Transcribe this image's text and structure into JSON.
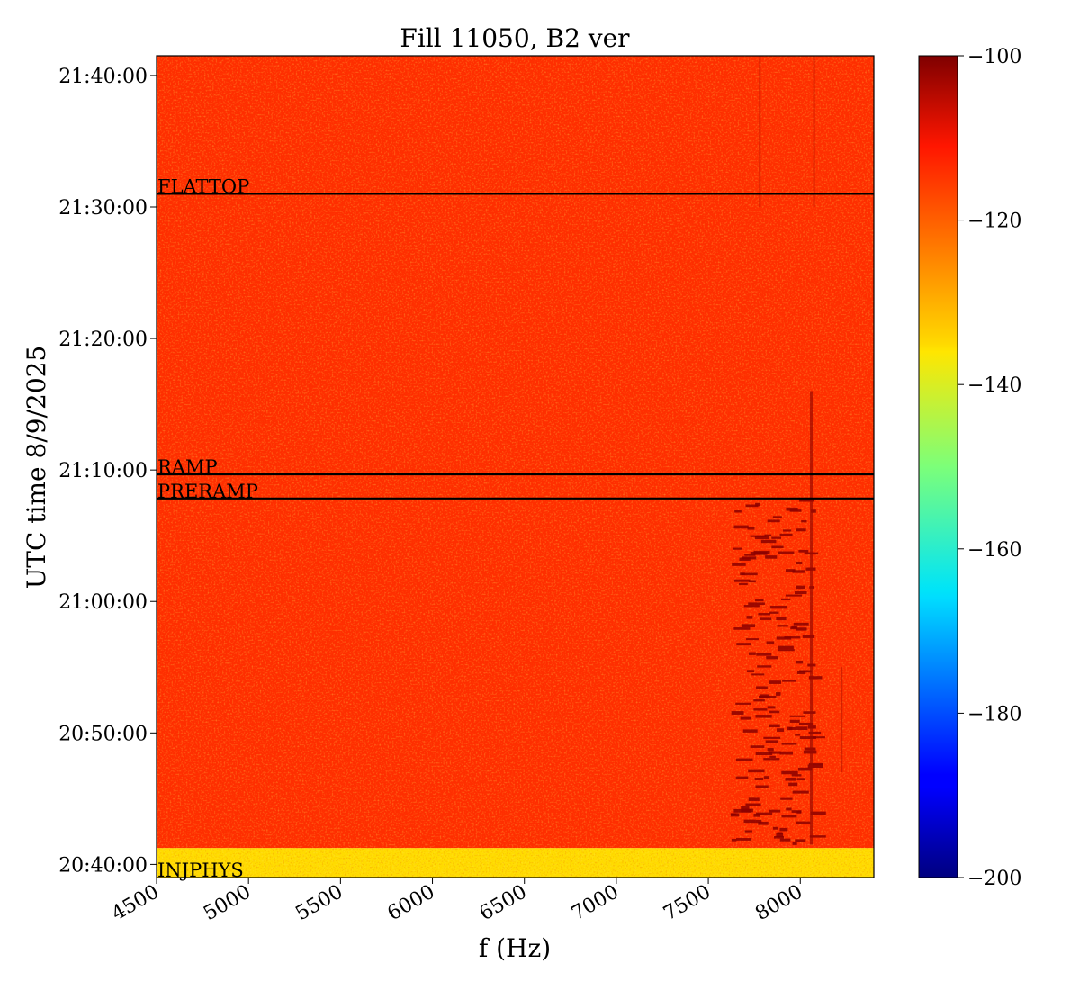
{
  "chart_data": {
    "type": "heatmap",
    "title": "Fill 11050, B2 ver",
    "xlabel": "f (Hz)",
    "ylabel": "UTC time 8/9/2025",
    "xlim": [
      4500,
      8400
    ],
    "ylim": [
      "20:39:00",
      "21:41:30"
    ],
    "x_ticks": [
      4500,
      5000,
      5500,
      6000,
      6500,
      7000,
      7500,
      8000
    ],
    "x_tick_labels": [
      "4500",
      "5000",
      "5500",
      "6000",
      "6500",
      "7000",
      "7500",
      "8000"
    ],
    "y_ticks": [
      "20:40:00",
      "20:50:00",
      "21:00:00",
      "21:10:00",
      "21:20:00",
      "21:30:00",
      "21:40:00"
    ],
    "colorbar": {
      "colormap": "jet",
      "min": -200,
      "max": -100,
      "ticks": [
        -100,
        -120,
        -140,
        -160,
        -180,
        -200
      ],
      "tick_labels": [
        "−100",
        "−120",
        "−140",
        "−160",
        "−180",
        "−200"
      ]
    },
    "annotations": [
      {
        "label": "FLATTOP",
        "time": "21:31:00"
      },
      {
        "label": "RAMP",
        "time": "21:09:40"
      },
      {
        "label": "PRERAMP",
        "time": "21:07:50"
      },
      {
        "label": "INJPHYS",
        "time": "20:39:00"
      }
    ],
    "regions": [
      {
        "from": "20:39:00",
        "to": "20:41:15",
        "level_db": -134
      },
      {
        "from": "20:41:15",
        "to": "21:41:30",
        "level_db": -117
      }
    ]
  }
}
